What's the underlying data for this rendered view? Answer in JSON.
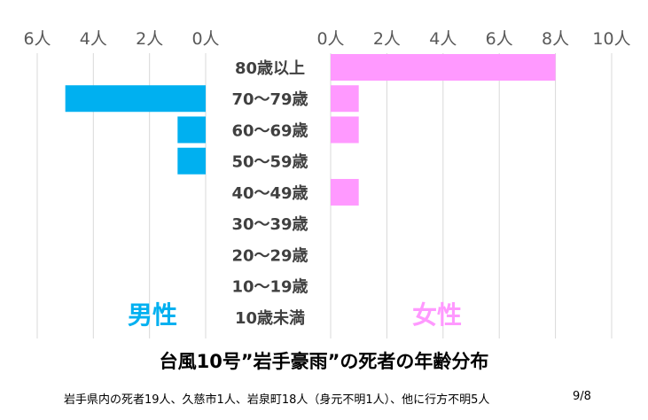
{
  "chart_data": {
    "type": "bar",
    "orientation": "horizontal",
    "layout": "butterfly",
    "title": "台風10号”岩手豪雨”の死者の年齢分布",
    "subtitle": "岩手県内の死者19人、久慈市1人、岩泉町18人（身元不明1人）、他に行方不明5人",
    "date_label": "9/8",
    "categories": [
      "80歳以上",
      "70〜79歳",
      "60〜69歳",
      "50〜59歳",
      "40〜49歳",
      "30〜39歳",
      "20〜29歳",
      "10〜19歳",
      "10歳未満"
    ],
    "series": [
      {
        "name": "男性",
        "color": "#00b0f0",
        "values": [
          0,
          5,
          1,
          1,
          0,
          0,
          0,
          0,
          0
        ],
        "xlim": [
          0,
          6
        ],
        "ticks": [
          6,
          4,
          2,
          0
        ],
        "tick_labels": [
          "6人",
          "4人",
          "2人",
          "0人"
        ]
      },
      {
        "name": "女性",
        "color": "#ff99ff",
        "values": [
          8,
          1,
          1,
          0,
          1,
          0,
          0,
          0,
          0
        ],
        "xlim": [
          0,
          10
        ],
        "ticks": [
          0,
          2,
          4,
          6,
          8,
          10
        ],
        "tick_labels": [
          "0人",
          "2人",
          "4人",
          "6人",
          "8人",
          "10人"
        ]
      }
    ],
    "grid": true
  }
}
